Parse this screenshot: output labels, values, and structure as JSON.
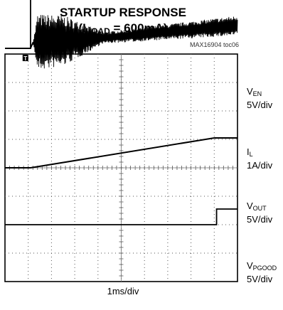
{
  "chart_data": {
    "type": "line",
    "title_line1": "STARTUP RESPONSE",
    "title_line2_prefix": "(I",
    "title_line2_sub": "LOAD",
    "title_line2_suffix": " = 600mA)",
    "figure_ref": "MAX16904 toc06",
    "x_scale_label": "1ms/div",
    "x_divisions": 10,
    "y_divisions": 8,
    "grid": true,
    "trigger_marker": "T",
    "x_units": "ms",
    "channels": [
      {
        "main": "V",
        "sub": "EN",
        "scale": "5V/div",
        "points": [
          [
            0,
            0.2
          ],
          [
            1.1,
            0.2
          ],
          [
            1.1,
            4.05
          ],
          [
            10,
            4.05
          ]
        ]
      },
      {
        "main": "I",
        "sub": "L",
        "scale": "1A/div",
        "points": [
          [
            0,
            2.2
          ],
          [
            1.1,
            2.2
          ],
          [
            1.2,
            2.4
          ],
          [
            4,
            2.55
          ],
          [
            10,
            3.0
          ]
        ],
        "ripple": [
          [
            1.2,
            0.0
          ],
          [
            1.4,
            1.0
          ],
          [
            2.5,
            0.9
          ],
          [
            3.5,
            0.5
          ],
          [
            4.2,
            0.2
          ],
          [
            10,
            0.35
          ]
        ]
      },
      {
        "main": "V",
        "sub": "OUT",
        "scale": "5V/div",
        "points": [
          [
            0,
            0
          ],
          [
            1.1,
            0
          ],
          [
            9,
            1.05
          ],
          [
            10,
            1.05
          ]
        ]
      },
      {
        "main": "V",
        "sub": "PGOOD",
        "scale": "5V/div",
        "points": [
          [
            0,
            0
          ],
          [
            9.1,
            0
          ],
          [
            9.1,
            0.55
          ],
          [
            10,
            0.55
          ]
        ]
      }
    ]
  }
}
